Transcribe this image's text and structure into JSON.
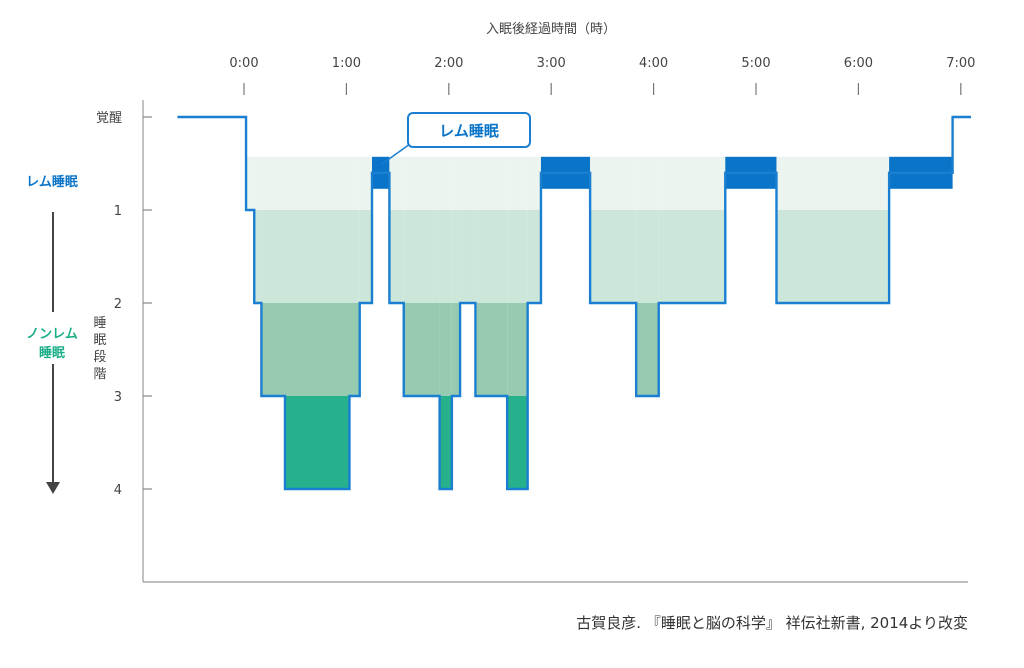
{
  "colors": {
    "rem": "#0a74c8",
    "line": "#1a7fd0",
    "nrem_label": "#1aae88",
    "stage1": "#ebf4ef",
    "stage2": "#cde6da",
    "stage3": "#96cbb2",
    "stage4": "#26b08c",
    "axis": "#999999"
  },
  "chart_data": {
    "type": "hypnogram",
    "xlabel": "入眠後経過時間（時）",
    "ylabel": "睡眠段階",
    "x_ticks": [
      "0:00",
      "1:00",
      "2:00",
      "3:00",
      "4:00",
      "5:00",
      "6:00",
      "7:00"
    ],
    "x_range": [
      -0.65,
      7.1
    ],
    "y_ticks": [
      "覚醒",
      "1",
      "2",
      "3",
      "4"
    ],
    "stage_values": {
      "wake": 0,
      "rem": 0.6,
      "1": 1,
      "2": 2,
      "3": 3,
      "4": 4
    },
    "ylim": [
      0,
      5
    ],
    "hypnogram": [
      {
        "t": -0.65,
        "stage": 0
      },
      {
        "t": 0.02,
        "stage": 1
      },
      {
        "t": 0.1,
        "stage": 2
      },
      {
        "t": 0.17,
        "stage": 3
      },
      {
        "t": 0.4,
        "stage": 4
      },
      {
        "t": 1.03,
        "stage": 3
      },
      {
        "t": 1.13,
        "stage": 2
      },
      {
        "t": 1.25,
        "stage": "rem"
      },
      {
        "t": 1.42,
        "stage": 2
      },
      {
        "t": 1.56,
        "stage": 3
      },
      {
        "t": 1.91,
        "stage": 4
      },
      {
        "t": 2.03,
        "stage": 3
      },
      {
        "t": 2.11,
        "stage": 2
      },
      {
        "t": 2.26,
        "stage": 3
      },
      {
        "t": 2.57,
        "stage": 4
      },
      {
        "t": 2.77,
        "stage": 2
      },
      {
        "t": 2.9,
        "stage": "rem"
      },
      {
        "t": 3.38,
        "stage": 2
      },
      {
        "t": 3.83,
        "stage": 3
      },
      {
        "t": 4.05,
        "stage": 2
      },
      {
        "t": 4.7,
        "stage": "rem"
      },
      {
        "t": 5.2,
        "stage": 2
      },
      {
        "t": 6.3,
        "stage": "rem"
      },
      {
        "t": 6.92,
        "stage": 0
      },
      {
        "t": 7.1,
        "stage": 0
      }
    ],
    "callout": "レム睡眠",
    "side_labels": {
      "rem": "レム睡眠",
      "nrem": [
        "ノンレム",
        "睡眠"
      ]
    }
  },
  "source": "古賀良彦. 『睡眠と脳の科学』 祥伝社新書, 2014より改変"
}
